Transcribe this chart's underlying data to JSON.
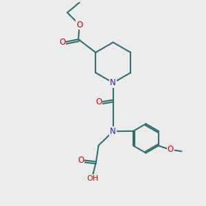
{
  "bg_color": "#ebebeb",
  "bond_color": "#2d6e6e",
  "n_color": "#2222cc",
  "o_color": "#cc0000",
  "line_width": 1.5,
  "font_size": 8.5,
  "xlim": [
    0,
    10
  ],
  "ylim": [
    0,
    10
  ]
}
